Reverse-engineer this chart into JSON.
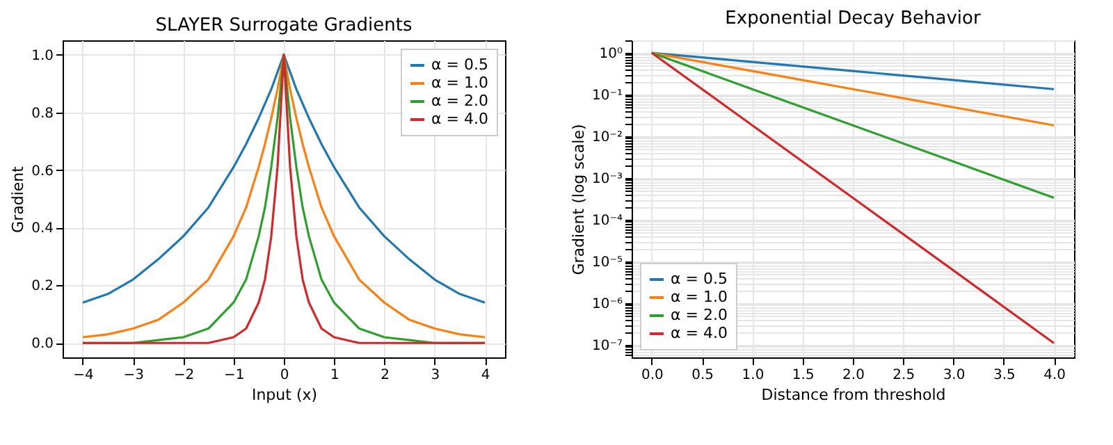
{
  "chart_data": [
    {
      "type": "line",
      "title": "SLAYER Surrogate Gradients",
      "xlabel": "Input (x)",
      "ylabel": "Gradient",
      "x": [
        -4,
        -3.5,
        -3,
        -2.5,
        -2,
        -1.5,
        -1,
        -0.75,
        -0.5,
        -0.375,
        -0.25,
        -0.125,
        0,
        0.125,
        0.25,
        0.375,
        0.5,
        0.75,
        1,
        1.5,
        2,
        2.5,
        3,
        3.5,
        4
      ],
      "series": [
        {
          "name": "α = 0.5",
          "color": "#1f77b4",
          "values": [
            0.14,
            0.17,
            0.22,
            0.29,
            0.37,
            0.47,
            0.61,
            0.69,
            0.78,
            0.83,
            0.88,
            0.94,
            1,
            0.94,
            0.88,
            0.83,
            0.78,
            0.69,
            0.61,
            0.47,
            0.37,
            0.29,
            0.22,
            0.17,
            0.14
          ]
        },
        {
          "name": "α = 1.0",
          "color": "#ff7f0e",
          "values": [
            0.02,
            0.03,
            0.05,
            0.08,
            0.14,
            0.22,
            0.37,
            0.47,
            0.61,
            0.69,
            0.78,
            0.88,
            1,
            0.88,
            0.78,
            0.69,
            0.61,
            0.47,
            0.37,
            0.22,
            0.14,
            0.08,
            0.05,
            0.03,
            0.02
          ]
        },
        {
          "name": "α = 2.0",
          "color": "#2ca02c",
          "values": [
            0,
            0,
            0,
            0.01,
            0.02,
            0.05,
            0.14,
            0.22,
            0.37,
            0.47,
            0.61,
            0.78,
            1,
            0.78,
            0.61,
            0.47,
            0.37,
            0.22,
            0.14,
            0.05,
            0.02,
            0.01,
            0,
            0,
            0
          ]
        },
        {
          "name": "α = 4.0",
          "color": "#d62728",
          "values": [
            0,
            0,
            0,
            0,
            0,
            0,
            0.02,
            0.05,
            0.14,
            0.22,
            0.37,
            0.61,
            1,
            0.61,
            0.37,
            0.22,
            0.14,
            0.05,
            0.02,
            0,
            0,
            0,
            0,
            0,
            0
          ]
        }
      ],
      "xlim": [
        -4.4,
        4.4
      ],
      "ylim": [
        -0.05,
        1.05
      ],
      "xticks": [
        {
          "value": -4,
          "label": "−4"
        },
        {
          "value": -3,
          "label": "−3"
        },
        {
          "value": -2,
          "label": "−2"
        },
        {
          "value": -1,
          "label": "−1"
        },
        0,
        1,
        2,
        3,
        4
      ],
      "yticks": [
        {
          "value": 0,
          "label": "0.0"
        },
        0.2,
        0.4,
        0.6,
        0.8,
        {
          "value": 1,
          "label": "1.0"
        }
      ],
      "grid": true,
      "legend": "top right"
    },
    {
      "type": "line",
      "title": "Exponential Decay Behavior",
      "xlabel": "Distance from threshold",
      "ylabel": "Gradient (log scale)",
      "x": [
        0,
        1,
        2,
        3,
        4
      ],
      "series": [
        {
          "name": "α = 0.5",
          "color": "#1f77b4",
          "values": [
            1,
            0.607,
            0.368,
            0.223,
            0.135
          ]
        },
        {
          "name": "α = 1.0",
          "color": "#ff7f0e",
          "values": [
            1,
            0.368,
            0.135,
            0.0498,
            0.0183
          ]
        },
        {
          "name": "α = 2.0",
          "color": "#2ca02c",
          "values": [
            1,
            0.135,
            0.0183,
            0.00248,
            0.000335
          ]
        },
        {
          "name": "α = 4.0",
          "color": "#d62728",
          "values": [
            1,
            0.0183,
            0.000335,
            6.1e-06,
            1.1e-07
          ]
        }
      ],
      "log": "y",
      "xlim": [
        -0.2,
        4.2
      ],
      "ylim": [
        5e-08,
        2
      ],
      "xticks": [
        {
          "value": 0,
          "label": "0.0"
        },
        0.5,
        {
          "value": 1,
          "label": "1.0"
        },
        1.5,
        {
          "value": 2,
          "label": "2.0"
        },
        2.5,
        {
          "value": 3,
          "label": "3.0"
        },
        3.5,
        {
          "value": 4,
          "label": "4.0"
        }
      ],
      "yticks": [
        {
          "value": 1e-07,
          "label": "10⁻⁷"
        },
        {
          "value": 1e-06,
          "label": "10⁻⁶"
        },
        {
          "value": 1e-05,
          "label": "10⁻⁵"
        },
        {
          "value": 0.0001,
          "label": "10⁻⁴"
        },
        {
          "value": 0.001,
          "label": "10⁻³"
        },
        {
          "value": 0.01,
          "label": "10⁻²"
        },
        {
          "value": 0.1,
          "label": "10⁻¹"
        },
        {
          "value": 1,
          "label": "10⁰"
        },
        {
          "value": 6e-08,
          "label": null
        },
        {
          "value": 7e-08,
          "label": null
        },
        {
          "value": 8e-08,
          "label": null
        },
        {
          "value": 9e-08,
          "label": null
        },
        {
          "value": 2e-07,
          "label": null
        },
        {
          "value": 3e-07,
          "label": null
        },
        {
          "value": 4e-07,
          "label": null
        },
        {
          "value": 5e-07,
          "label": null
        },
        {
          "value": 6e-07,
          "label": null
        },
        {
          "value": 7e-07,
          "label": null
        },
        {
          "value": 8e-07,
          "label": null
        },
        {
          "value": 9e-07,
          "label": null
        },
        {
          "value": 2e-06,
          "label": null
        },
        {
          "value": 3e-06,
          "label": null
        },
        {
          "value": 4e-06,
          "label": null
        },
        {
          "value": 5e-06,
          "label": null
        },
        {
          "value": 6e-06,
          "label": null
        },
        {
          "value": 7e-06,
          "label": null
        },
        {
          "value": 8e-06,
          "label": null
        },
        {
          "value": 9e-06,
          "label": null
        },
        {
          "value": 2e-05,
          "label": null
        },
        {
          "value": 3e-05,
          "label": null
        },
        {
          "value": 4e-05,
          "label": null
        },
        {
          "value": 5e-05,
          "label": null
        },
        {
          "value": 6e-05,
          "label": null
        },
        {
          "value": 7e-05,
          "label": null
        },
        {
          "value": 8e-05,
          "label": null
        },
        {
          "value": 9e-05,
          "label": null
        },
        {
          "value": 0.0002,
          "label": null
        },
        {
          "value": 0.0003,
          "label": null
        },
        {
          "value": 0.0004,
          "label": null
        },
        {
          "value": 0.0005,
          "label": null
        },
        {
          "value": 0.0006,
          "label": null
        },
        {
          "value": 0.0007,
          "label": null
        },
        {
          "value": 0.0008,
          "label": null
        },
        {
          "value": 0.0009,
          "label": null
        },
        {
          "value": 0.002,
          "label": null
        },
        {
          "value": 0.003,
          "label": null
        },
        {
          "value": 0.004,
          "label": null
        },
        {
          "value": 0.005,
          "label": null
        },
        {
          "value": 0.006,
          "label": null
        },
        {
          "value": 0.007,
          "label": null
        },
        {
          "value": 0.008,
          "label": null
        },
        {
          "value": 0.009,
          "label": null
        },
        {
          "value": 0.02,
          "label": null
        },
        {
          "value": 0.03,
          "label": null
        },
        {
          "value": 0.04,
          "label": null
        },
        {
          "value": 0.05,
          "label": null
        },
        {
          "value": 0.06,
          "label": null
        },
        {
          "value": 0.07,
          "label": null
        },
        {
          "value": 0.08,
          "label": null
        },
        {
          "value": 0.09,
          "label": null
        },
        {
          "value": 0.2,
          "label": null
        },
        {
          "value": 0.3,
          "label": null
        },
        {
          "value": 0.4,
          "label": null
        },
        {
          "value": 0.5,
          "label": null
        },
        {
          "value": 0.6,
          "label": null
        },
        {
          "value": 0.7,
          "label": null
        },
        {
          "value": 0.8,
          "label": null
        },
        {
          "value": 0.9,
          "label": null
        },
        {
          "value": 2,
          "label": null
        }
      ],
      "grid": true,
      "legend": "bottom left"
    }
  ]
}
